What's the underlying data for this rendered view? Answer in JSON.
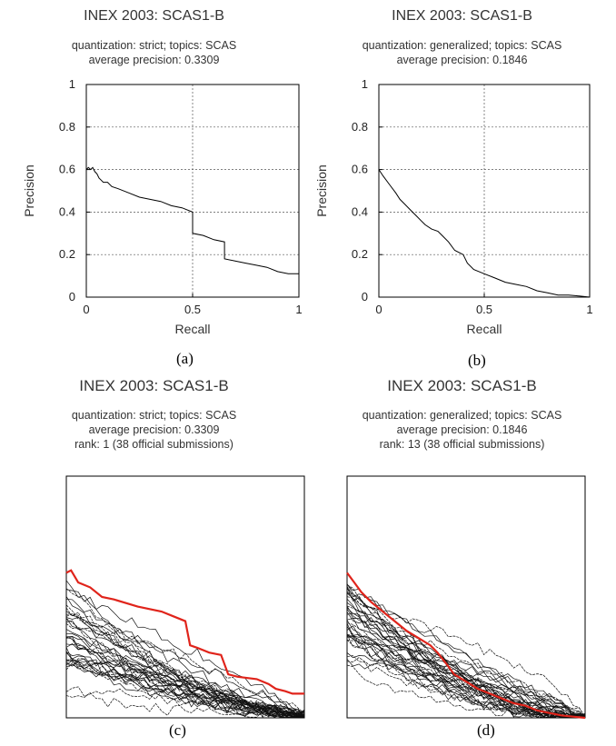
{
  "chart_data": [
    {
      "id": "a",
      "type": "line",
      "title": "INEX 2003: SCAS1-B",
      "subtitle": [
        "quantization: strict; topics: SCAS",
        "average precision: 0.3309"
      ],
      "xlabel": "Recall",
      "ylabel": "Precision",
      "xlim": [
        0,
        1
      ],
      "ylim": [
        0,
        1
      ],
      "xticks": [
        "0",
        "0.5",
        "1"
      ],
      "yticks": [
        "0",
        "0.2",
        "0.4",
        "0.6",
        "0.8",
        "1"
      ],
      "grid": "dashed at 0.5 recall and 0.2 precision steps",
      "panel_label": "(a)",
      "series": [
        {
          "x": [
            0,
            0.01,
            0.02,
            0.03,
            0.04,
            0.05,
            0.06,
            0.07,
            0.08,
            0.1,
            0.12,
            0.15,
            0.2,
            0.25,
            0.3,
            0.35,
            0.4,
            0.45,
            0.5,
            0.5,
            0.55,
            0.6,
            0.65,
            0.65,
            0.7,
            0.75,
            0.8,
            0.85,
            0.9,
            0.95,
            1.0
          ],
          "y": [
            0.6,
            0.61,
            0.6,
            0.61,
            0.59,
            0.58,
            0.56,
            0.55,
            0.54,
            0.54,
            0.52,
            0.51,
            0.49,
            0.47,
            0.46,
            0.45,
            0.43,
            0.42,
            0.4,
            0.3,
            0.29,
            0.27,
            0.26,
            0.18,
            0.17,
            0.16,
            0.15,
            0.14,
            0.12,
            0.11,
            0.11
          ]
        }
      ]
    },
    {
      "id": "b",
      "type": "line",
      "title": "INEX 2003: SCAS1-B",
      "subtitle": [
        "quantization: generalized; topics: SCAS",
        "average precision: 0.1846"
      ],
      "xlabel": "Recall",
      "ylabel": "Precision",
      "xlim": [
        0,
        1
      ],
      "ylim": [
        0,
        1
      ],
      "xticks": [
        "0",
        "0.5",
        "1"
      ],
      "yticks": [
        "0",
        "0.2",
        "0.4",
        "0.6",
        "0.8",
        "1"
      ],
      "grid": "dashed at 0.5 recall and 0.2 precision steps",
      "panel_label": "(b)",
      "series": [
        {
          "x": [
            0,
            0.02,
            0.05,
            0.08,
            0.1,
            0.12,
            0.15,
            0.18,
            0.2,
            0.22,
            0.25,
            0.28,
            0.3,
            0.33,
            0.36,
            0.4,
            0.42,
            0.45,
            0.5,
            0.55,
            0.6,
            0.65,
            0.7,
            0.75,
            0.8,
            0.85,
            0.9,
            0.95,
            1.0
          ],
          "y": [
            0.6,
            0.57,
            0.53,
            0.49,
            0.46,
            0.44,
            0.41,
            0.38,
            0.36,
            0.34,
            0.32,
            0.31,
            0.29,
            0.26,
            0.22,
            0.2,
            0.16,
            0.13,
            0.11,
            0.09,
            0.07,
            0.06,
            0.05,
            0.03,
            0.02,
            0.01,
            0.01,
            0.005,
            0.0
          ]
        }
      ]
    },
    {
      "id": "c",
      "type": "line",
      "title": "INEX 2003: SCAS1-B",
      "subtitle": [
        "quantization: strict; topics: SCAS",
        "average precision: 0.3309",
        "rank: 1 (38 official submissions)"
      ],
      "xlim": [
        0,
        1
      ],
      "ylim": [
        0,
        1
      ],
      "panel_label": "(c)",
      "highlight_color": "#e0241b",
      "highlight": {
        "x": [
          0,
          0.02,
          0.05,
          0.1,
          0.15,
          0.2,
          0.3,
          0.4,
          0.45,
          0.5,
          0.52,
          0.55,
          0.6,
          0.65,
          0.68,
          0.72,
          0.8,
          0.85,
          0.88,
          0.92,
          0.95,
          1.0
        ],
        "y": [
          0.6,
          0.61,
          0.56,
          0.54,
          0.5,
          0.49,
          0.46,
          0.44,
          0.42,
          0.4,
          0.3,
          0.29,
          0.27,
          0.26,
          0.18,
          0.17,
          0.16,
          0.14,
          0.12,
          0.11,
          0.1,
          0.1
        ]
      },
      "others_count": 37
    },
    {
      "id": "d",
      "type": "line",
      "title": "INEX 2003: SCAS1-B",
      "subtitle": [
        "quantization: generalized; topics: SCAS",
        "average precision: 0.1846",
        "rank: 13 (38 official submissions)"
      ],
      "xlim": [
        0,
        1
      ],
      "ylim": [
        0,
        1
      ],
      "panel_label": "(d)",
      "highlight_color": "#e0241b",
      "highlight": {
        "x": [
          0,
          0.03,
          0.06,
          0.1,
          0.15,
          0.2,
          0.25,
          0.3,
          0.35,
          0.38,
          0.42,
          0.45,
          0.5,
          0.55,
          0.6,
          0.65,
          0.7,
          0.75,
          0.8,
          0.85,
          0.9,
          0.95,
          1.0
        ],
        "y": [
          0.6,
          0.56,
          0.52,
          0.48,
          0.44,
          0.4,
          0.36,
          0.33,
          0.3,
          0.27,
          0.22,
          0.18,
          0.15,
          0.12,
          0.1,
          0.08,
          0.06,
          0.05,
          0.03,
          0.02,
          0.01,
          0.005,
          0.0
        ]
      },
      "others_count": 37
    }
  ]
}
